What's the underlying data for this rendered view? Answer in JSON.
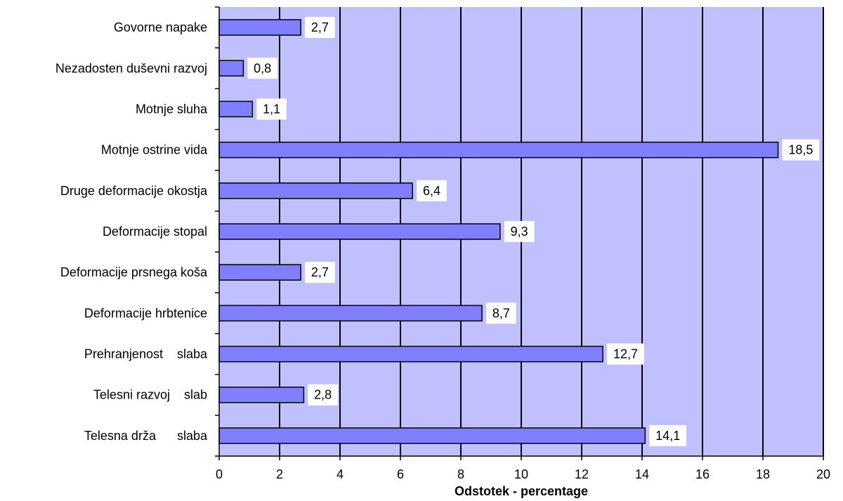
{
  "chart_data": {
    "type": "bar",
    "orientation": "horizontal",
    "categories": [
      "Govorne napake",
      "Nezadosten duševni razvoj",
      "Motnje sluha",
      "Motnje ostrine vida",
      "Druge deformacije okostja",
      "Deformacije stopal",
      "Deformacije prsnega koša",
      "Deformacije hrbtenice",
      "Prehranjenost    slaba",
      "Telesni razvoj    slab",
      "Telesna drža      slaba"
    ],
    "values": [
      2.7,
      0.8,
      1.1,
      18.5,
      6.4,
      9.3,
      2.7,
      8.7,
      12.7,
      2.8,
      14.1
    ],
    "data_labels": [
      "2,7",
      "0,8",
      "1,1",
      "18,5",
      "6,4",
      "9,3",
      "2,7",
      "8,7",
      "12,7",
      "2,8",
      "14,1"
    ],
    "xlabel": "Odstotek - percentage",
    "xlim": [
      0,
      20
    ],
    "x_ticks": [
      0,
      2,
      4,
      6,
      8,
      10,
      12,
      14,
      16,
      18,
      20
    ],
    "x_tick_labels": [
      "0",
      "2",
      "4",
      "6",
      "8",
      "10",
      "12",
      "14",
      "16",
      "18",
      "20"
    ],
    "grid": true,
    "legend": "none",
    "colors": {
      "plot_background": "#c0c0ff",
      "bar_fill": "#8080ff",
      "bar_stroke": "#000000",
      "gridline": "#000000",
      "label_box": "#ffffff"
    }
  }
}
